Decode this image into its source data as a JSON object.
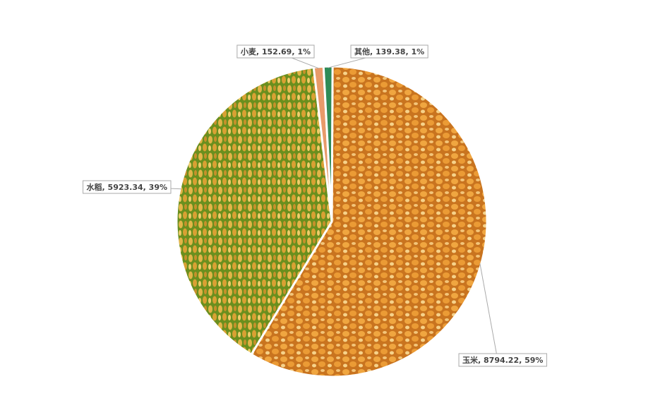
{
  "chart_data": {
    "type": "pie",
    "values": [
      8794.22,
      5923.34,
      152.69,
      139.38
    ],
    "value_labels": [
      "玉米, 8794.22, 59%",
      "水稻, 5923.34, 39%",
      "小麦, 152.69, 1%",
      "其他, 139.38, 1%"
    ],
    "colors": [
      "#d98a2b",
      "#d9a73a",
      "#e89a6a",
      "#2e8b57"
    ]
  }
}
